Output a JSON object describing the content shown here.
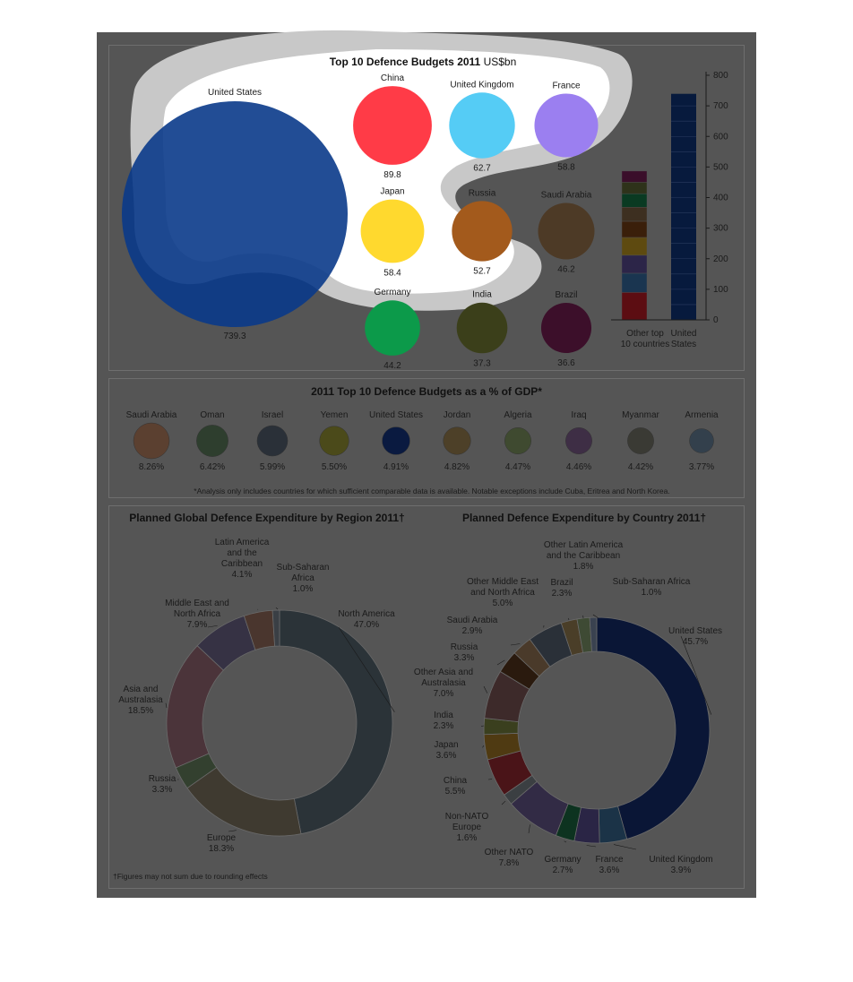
{
  "chart_data": [
    {
      "id": "budgets",
      "type": "bubble",
      "title": "Top 10 Defence Budgets 2011",
      "title_unit": "US$bn",
      "items": [
        {
          "name": "United States",
          "value": 739.3,
          "color": "#0a3a8a"
        },
        {
          "name": "China",
          "value": 89.8,
          "color": "#ff3b47"
        },
        {
          "name": "United Kingdom",
          "value": 62.7,
          "color": "#55ccf5"
        },
        {
          "name": "France",
          "value": 58.8,
          "color": "#9b7ff0"
        },
        {
          "name": "Japan",
          "value": 58.4,
          "color": "#ffd92e"
        },
        {
          "name": "Russia",
          "value": 52.7,
          "color": "#a35a1c"
        },
        {
          "name": "Saudi Arabia",
          "value": 46.2,
          "color": "#4d3a26"
        },
        {
          "name": "Germany",
          "value": 44.2,
          "color": "#0c9a4a"
        },
        {
          "name": "India",
          "value": 37.3,
          "color": "#3b3f1a"
        },
        {
          "name": "Brazil",
          "value": 36.6,
          "color": "#3c0f2a"
        }
      ]
    },
    {
      "id": "stacked",
      "type": "bar",
      "categories": [
        "Other top\n10 countries",
        "United\nStates"
      ],
      "yticks": [
        0,
        100,
        200,
        300,
        400,
        500,
        600,
        700,
        800
      ],
      "ylim": [
        0,
        800
      ],
      "other_segments": [
        {
          "name": "China",
          "value": 89.8,
          "color": "#5c0d12"
        },
        {
          "name": "United Kingdom",
          "value": 62.7,
          "color": "#1a3550"
        },
        {
          "name": "France",
          "value": 58.8,
          "color": "#2c2548"
        },
        {
          "name": "Japan",
          "value": 58.4,
          "color": "#5e4a10"
        },
        {
          "name": "Russia",
          "value": 52.7,
          "color": "#3a1f0a"
        },
        {
          "name": "Saudi Arabia",
          "value": 46.2,
          "color": "#3d2f20"
        },
        {
          "name": "Germany",
          "value": 44.2,
          "color": "#0a3a22"
        },
        {
          "name": "India",
          "value": 37.3,
          "color": "#2e321a"
        },
        {
          "name": "Brazil",
          "value": 36.6,
          "color": "#3a0e2a"
        }
      ],
      "us_value": 739.3,
      "us_color": "#071a3d"
    },
    {
      "id": "gdp",
      "type": "bubble",
      "title": "2011 Top 10 Defence Budgets as a % of GDP*",
      "items": [
        {
          "name": "Saudi Arabia",
          "value": 8.26,
          "label": "8.26%",
          "color": "#5b4030"
        },
        {
          "name": "Oman",
          "value": 6.42,
          "label": "6.42%",
          "color": "#2e3e2e"
        },
        {
          "name": "Israel",
          "value": 5.99,
          "label": "5.99%",
          "color": "#2a3038"
        },
        {
          "name": "Yemen",
          "value": 5.5,
          "label": "5.50%",
          "color": "#4b4a1a"
        },
        {
          "name": "United States",
          "value": 4.91,
          "label": "4.91%",
          "color": "#0a1a40"
        },
        {
          "name": "Jordan",
          "value": 4.82,
          "label": "4.82%",
          "color": "#4d4028"
        },
        {
          "name": "Algeria",
          "value": 4.47,
          "label": "4.47%",
          "color": "#3f4a30"
        },
        {
          "name": "Iraq",
          "value": 4.46,
          "label": "4.46%",
          "color": "#3e2e45"
        },
        {
          "name": "Myanmar",
          "value": 4.42,
          "label": "4.42%",
          "color": "#3a3a34"
        },
        {
          "name": "Armenia",
          "value": 3.77,
          "label": "3.77%",
          "color": "#33404c"
        }
      ],
      "footnote": "*Analysis only includes countries for which sufficient comparable data is available. Notable exceptions include Cuba, Eritrea and North Korea."
    },
    {
      "id": "region",
      "type": "pie",
      "title": "Planned Global Defence Expenditure by Region 2011†",
      "slices": [
        {
          "label": "North America\n47.0%",
          "value": 47.0,
          "color": "#2b3338"
        },
        {
          "label": "Europe\n18.3%",
          "value": 18.3,
          "color": "#3f3a30"
        },
        {
          "label": "Russia\n3.3%",
          "value": 3.3,
          "color": "#33402f"
        },
        {
          "label": "Asia and\nAustralasia\n18.5%",
          "value": 18.5,
          "color": "#4b343a"
        },
        {
          "label": "Middle East and\nNorth Africa\n7.9%",
          "value": 7.9,
          "color": "#363244"
        },
        {
          "label": "Latin America\nand the\nCaribbean\n4.1%",
          "value": 4.1,
          "color": "#4a362e"
        },
        {
          "label": "Sub-Saharan\nAfrica\n1.0%",
          "value": 1.0,
          "color": "#3a3f45"
        }
      ],
      "footnote": "†Figures may not sum due to rounding effects"
    },
    {
      "id": "country",
      "type": "pie",
      "title": "Planned Defence Expenditure by Country 2011†",
      "slices": [
        {
          "label": "United States\n45.7%",
          "value": 45.7,
          "color": "#0a1636"
        },
        {
          "label": "United Kingdom\n3.9%",
          "value": 3.9,
          "color": "#1b3347"
        },
        {
          "label": "France\n3.6%",
          "value": 3.6,
          "color": "#2a2545"
        },
        {
          "label": "Germany\n2.7%",
          "value": 2.7,
          "color": "#0d3320"
        },
        {
          "label": "Other NATO\n7.8%",
          "value": 7.8,
          "color": "#322b45"
        },
        {
          "label": "Non-NATO\nEurope\n1.6%",
          "value": 1.6,
          "color": "#3b3f42"
        },
        {
          "label": "China\n5.5%",
          "value": 5.5,
          "color": "#4a1418"
        },
        {
          "label": "Japan\n3.6%",
          "value": 3.6,
          "color": "#4f3a12"
        },
        {
          "label": "India\n2.3%",
          "value": 2.3,
          "color": "#3a3f1e"
        },
        {
          "label": "Other Asia and\nAustralasia\n7.0%",
          "value": 7.0,
          "color": "#3d2a2a"
        },
        {
          "label": "Russia\n3.3%",
          "value": 3.3,
          "color": "#2a1a0e"
        },
        {
          "label": "Saudi Arabia\n2.9%",
          "value": 2.9,
          "color": "#4a3a2a"
        },
        {
          "label": "Other Middle East\nand North Africa\n5.0%",
          "value": 5.0,
          "color": "#2a3038"
        },
        {
          "label": "Brazil\n2.3%",
          "value": 2.3,
          "color": "#4a3e28"
        },
        {
          "label": "Other Latin America\nand the Caribbean\n1.8%",
          "value": 1.8,
          "color": "#3e4a34"
        },
        {
          "label": "Sub-Saharan Africa\n1.0%",
          "value": 1.0,
          "color": "#3a4250"
        }
      ]
    }
  ]
}
